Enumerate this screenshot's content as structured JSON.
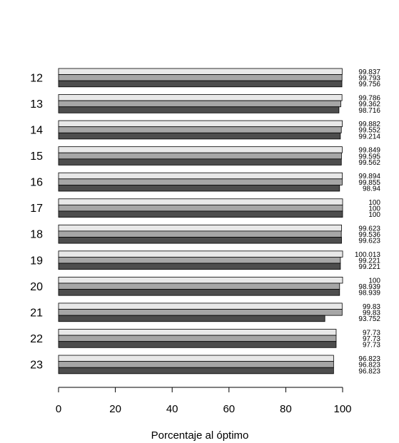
{
  "chart_data": {
    "type": "bar",
    "orientation": "horizontal",
    "title": "",
    "xlabel": "Porcentaje al óptimo",
    "ylabel": "",
    "xlim": [
      0,
      100
    ],
    "xticks": [
      0,
      20,
      40,
      60,
      80,
      100
    ],
    "categories": [
      "12",
      "13",
      "14",
      "15",
      "16",
      "17",
      "18",
      "19",
      "20",
      "21",
      "22",
      "23"
    ],
    "series": [
      {
        "color": "#e8e8e8",
        "values": [
          99.837,
          99.786,
          99.882,
          99.849,
          99.894,
          100,
          99.623,
          100.013,
          100,
          99.83,
          97.73,
          96.823
        ],
        "labels": [
          "99.837",
          "99.786",
          "99.882",
          "99.849",
          "99.894",
          "100",
          "99.623",
          "100.013",
          "100",
          "99.83",
          "97.73",
          "96.823"
        ]
      },
      {
        "color": "#a6a6a6",
        "values": [
          99.793,
          99.362,
          99.552,
          99.595,
          99.855,
          100,
          99.536,
          99.221,
          98.939,
          99.83,
          97.73,
          96.823
        ],
        "labels": [
          "99.793",
          "99.362",
          "99.552",
          "99.595",
          "99.855",
          "100",
          "99.536",
          "99.221",
          "98.939",
          "99.83",
          "97.73",
          "96.823"
        ]
      },
      {
        "color": "#4d4d4d",
        "values": [
          99.756,
          98.716,
          99.214,
          99.562,
          98.94,
          100,
          99.623,
          99.221,
          98.939,
          93.752,
          97.73,
          96.823
        ],
        "labels": [
          "99.756",
          "98.716",
          "99.214",
          "99.562",
          "98.94",
          "100",
          "99.623",
          "99.221",
          "98.939",
          "93.752",
          "97.73",
          "96.823"
        ]
      }
    ],
    "grid": false,
    "legend": "none"
  }
}
